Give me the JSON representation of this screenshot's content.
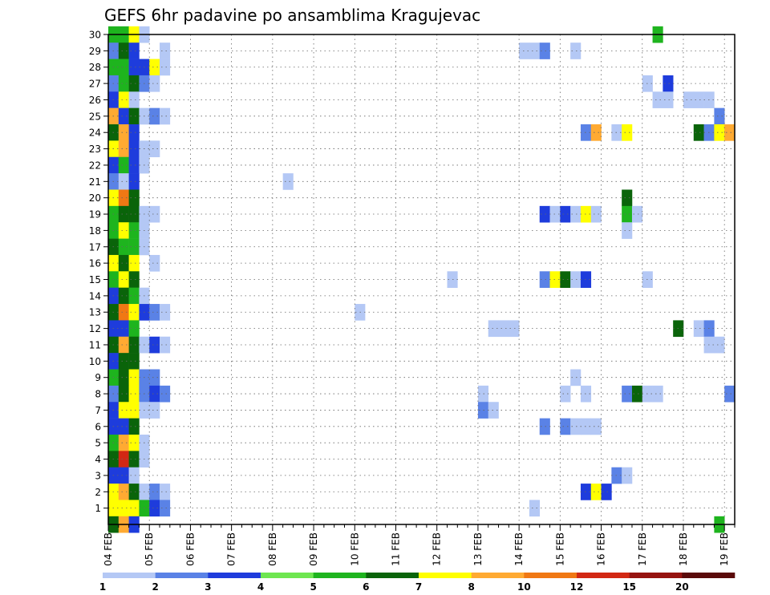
{
  "chart_data": {
    "type": "heatmap",
    "title": "GEFS 6hr padavine po ansamblima Kragujevac",
    "xlabel": "",
    "ylabel": "",
    "x_ticks": [
      "04 FEB",
      "05 FEB",
      "06 FEB",
      "07 FEB",
      "08 FEB",
      "09 FEB",
      "10 FEB",
      "11 FEB",
      "12 FEB",
      "13 FEB",
      "14 FEB",
      "15 FEB",
      "16 FEB",
      "17 FEB",
      "18 FEB",
      "19 FEB"
    ],
    "y_ticks": [
      "1",
      "2",
      "3",
      "4",
      "5",
      "6",
      "7",
      "8",
      "9",
      "10",
      "11",
      "12",
      "13",
      "14",
      "15",
      "16",
      "17",
      "18",
      "19",
      "20",
      "21",
      "22",
      "23",
      "24",
      "25",
      "26",
      "27",
      "28",
      "29",
      "30"
    ],
    "xlim": [
      0,
      61
    ],
    "ylim": [
      0,
      30
    ],
    "grid": true,
    "colorbar": {
      "labels": [
        "1",
        "2",
        "3",
        "4",
        "5",
        "6",
        "7",
        "8",
        "10",
        "12",
        "15",
        "20"
      ],
      "colors": [
        "#b4c8f5",
        "#5a82e6",
        "#1e3cdc",
        "#6ee650",
        "#1eb41e",
        "#0a640a",
        "#ffff00",
        "#ffaa32",
        "#f07814",
        "#d22814",
        "#961410",
        "#5a0a0a"
      ]
    },
    "cells": [
      {
        "m": 30,
        "t": 0,
        "v": 5
      },
      {
        "m": 30,
        "t": 1,
        "v": 5
      },
      {
        "m": 30,
        "t": 2,
        "v": 7
      },
      {
        "m": 30,
        "t": 3,
        "v": 1
      },
      {
        "m": 30,
        "t": 53,
        "v": 5
      },
      {
        "m": 29,
        "t": 0,
        "v": 2
      },
      {
        "m": 29,
        "t": 1,
        "v": 6
      },
      {
        "m": 29,
        "t": 2,
        "v": 3
      },
      {
        "m": 29,
        "t": 5,
        "v": 1
      },
      {
        "m": 29,
        "t": 40,
        "v": 1
      },
      {
        "m": 29,
        "t": 41,
        "v": 1
      },
      {
        "m": 29,
        "t": 42,
        "v": 2
      },
      {
        "m": 29,
        "t": 45,
        "v": 1
      },
      {
        "m": 28,
        "t": 0,
        "v": 5
      },
      {
        "m": 28,
        "t": 1,
        "v": 5
      },
      {
        "m": 28,
        "t": 2,
        "v": 3
      },
      {
        "m": 28,
        "t": 3,
        "v": 3
      },
      {
        "m": 28,
        "t": 4,
        "v": 7
      },
      {
        "m": 28,
        "t": 5,
        "v": 1
      },
      {
        "m": 27,
        "t": 0,
        "v": 2
      },
      {
        "m": 27,
        "t": 1,
        "v": 5
      },
      {
        "m": 27,
        "t": 2,
        "v": 6
      },
      {
        "m": 27,
        "t": 3,
        "v": 2
      },
      {
        "m": 27,
        "t": 4,
        "v": 1
      },
      {
        "m": 27,
        "t": 52,
        "v": 1
      },
      {
        "m": 27,
        "t": 54,
        "v": 3
      },
      {
        "m": 26,
        "t": 0,
        "v": 3
      },
      {
        "m": 26,
        "t": 1,
        "v": 7
      },
      {
        "m": 26,
        "t": 2,
        "v": 1
      },
      {
        "m": 26,
        "t": 53,
        "v": 1
      },
      {
        "m": 26,
        "t": 54,
        "v": 1
      },
      {
        "m": 26,
        "t": 56,
        "v": 1
      },
      {
        "m": 26,
        "t": 57,
        "v": 1
      },
      {
        "m": 26,
        "t": 58,
        "v": 1
      },
      {
        "m": 25,
        "t": 0,
        "v": 8
      },
      {
        "m": 25,
        "t": 1,
        "v": 3
      },
      {
        "m": 25,
        "t": 2,
        "v": 6
      },
      {
        "m": 25,
        "t": 3,
        "v": 1
      },
      {
        "m": 25,
        "t": 4,
        "v": 2
      },
      {
        "m": 25,
        "t": 5,
        "v": 1
      },
      {
        "m": 25,
        "t": 59,
        "v": 2
      },
      {
        "m": 24,
        "t": 0,
        "v": 6
      },
      {
        "m": 24,
        "t": 1,
        "v": 8
      },
      {
        "m": 24,
        "t": 2,
        "v": 3
      },
      {
        "m": 24,
        "t": 46,
        "v": 2
      },
      {
        "m": 24,
        "t": 47,
        "v": 8
      },
      {
        "m": 24,
        "t": 49,
        "v": 1
      },
      {
        "m": 24,
        "t": 50,
        "v": 7
      },
      {
        "m": 24,
        "t": 57,
        "v": 6
      },
      {
        "m": 24,
        "t": 58,
        "v": 2
      },
      {
        "m": 24,
        "t": 59,
        "v": 7
      },
      {
        "m": 24,
        "t": 60,
        "v": 8
      },
      {
        "m": 23,
        "t": 0,
        "v": 7
      },
      {
        "m": 23,
        "t": 1,
        "v": 8
      },
      {
        "m": 23,
        "t": 2,
        "v": 3
      },
      {
        "m": 23,
        "t": 3,
        "v": 1
      },
      {
        "m": 23,
        "t": 4,
        "v": 1
      },
      {
        "m": 22,
        "t": 0,
        "v": 3
      },
      {
        "m": 22,
        "t": 1,
        "v": 5
      },
      {
        "m": 22,
        "t": 2,
        "v": 3
      },
      {
        "m": 22,
        "t": 3,
        "v": 1
      },
      {
        "m": 21,
        "t": 0,
        "v": 2
      },
      {
        "m": 21,
        "t": 1,
        "v": 1
      },
      {
        "m": 21,
        "t": 2,
        "v": 3
      },
      {
        "m": 21,
        "t": 17,
        "v": 1
      },
      {
        "m": 20,
        "t": 0,
        "v": 7
      },
      {
        "m": 20,
        "t": 1,
        "v": 9
      },
      {
        "m": 20,
        "t": 2,
        "v": 6
      },
      {
        "m": 20,
        "t": 50,
        "v": 6
      },
      {
        "m": 19,
        "t": 0,
        "v": 5
      },
      {
        "m": 19,
        "t": 1,
        "v": 6
      },
      {
        "m": 19,
        "t": 2,
        "v": 6
      },
      {
        "m": 19,
        "t": 3,
        "v": 1
      },
      {
        "m": 19,
        "t": 4,
        "v": 1
      },
      {
        "m": 19,
        "t": 42,
        "v": 3
      },
      {
        "m": 19,
        "t": 43,
        "v": 1
      },
      {
        "m": 19,
        "t": 44,
        "v": 3
      },
      {
        "m": 19,
        "t": 45,
        "v": 1
      },
      {
        "m": 19,
        "t": 46,
        "v": 7
      },
      {
        "m": 19,
        "t": 47,
        "v": 1
      },
      {
        "m": 19,
        "t": 50,
        "v": 5
      },
      {
        "m": 19,
        "t": 51,
        "v": 1
      },
      {
        "m": 18,
        "t": 0,
        "v": 5
      },
      {
        "m": 18,
        "t": 1,
        "v": 7
      },
      {
        "m": 18,
        "t": 2,
        "v": 5
      },
      {
        "m": 18,
        "t": 3,
        "v": 1
      },
      {
        "m": 18,
        "t": 50,
        "v": 1
      },
      {
        "m": 17,
        "t": 0,
        "v": 6
      },
      {
        "m": 17,
        "t": 1,
        "v": 5
      },
      {
        "m": 17,
        "t": 2,
        "v": 5
      },
      {
        "m": 17,
        "t": 3,
        "v": 1
      },
      {
        "m": 16,
        "t": 0,
        "v": 7
      },
      {
        "m": 16,
        "t": 1,
        "v": 6
      },
      {
        "m": 16,
        "t": 2,
        "v": 7
      },
      {
        "m": 16,
        "t": 4,
        "v": 1
      },
      {
        "m": 15,
        "t": 0,
        "v": 5
      },
      {
        "m": 15,
        "t": 1,
        "v": 7
      },
      {
        "m": 15,
        "t": 2,
        "v": 6
      },
      {
        "m": 15,
        "t": 33,
        "v": 1
      },
      {
        "m": 15,
        "t": 42,
        "v": 2
      },
      {
        "m": 15,
        "t": 43,
        "v": 7
      },
      {
        "m": 15,
        "t": 44,
        "v": 6
      },
      {
        "m": 15,
        "t": 45,
        "v": 1
      },
      {
        "m": 15,
        "t": 46,
        "v": 3
      },
      {
        "m": 15,
        "t": 52,
        "v": 1
      },
      {
        "m": 14,
        "t": 0,
        "v": 3
      },
      {
        "m": 14,
        "t": 1,
        "v": 6
      },
      {
        "m": 14,
        "t": 2,
        "v": 5
      },
      {
        "m": 14,
        "t": 3,
        "v": 1
      },
      {
        "m": 13,
        "t": 0,
        "v": 6
      },
      {
        "m": 13,
        "t": 1,
        "v": 9
      },
      {
        "m": 13,
        "t": 2,
        "v": 7
      },
      {
        "m": 13,
        "t": 3,
        "v": 3
      },
      {
        "m": 13,
        "t": 4,
        "v": 2
      },
      {
        "m": 13,
        "t": 5,
        "v": 1
      },
      {
        "m": 13,
        "t": 24,
        "v": 1
      },
      {
        "m": 12,
        "t": 0,
        "v": 3
      },
      {
        "m": 12,
        "t": 1,
        "v": 3
      },
      {
        "m": 12,
        "t": 2,
        "v": 5
      },
      {
        "m": 12,
        "t": 37,
        "v": 1
      },
      {
        "m": 12,
        "t": 38,
        "v": 1
      },
      {
        "m": 12,
        "t": 39,
        "v": 1
      },
      {
        "m": 12,
        "t": 55,
        "v": 6
      },
      {
        "m": 12,
        "t": 57,
        "v": 1
      },
      {
        "m": 12,
        "t": 58,
        "v": 2
      },
      {
        "m": 11,
        "t": 0,
        "v": 6
      },
      {
        "m": 11,
        "t": 1,
        "v": 8
      },
      {
        "m": 11,
        "t": 2,
        "v": 6
      },
      {
        "m": 11,
        "t": 3,
        "v": 1
      },
      {
        "m": 11,
        "t": 4,
        "v": 3
      },
      {
        "m": 11,
        "t": 5,
        "v": 1
      },
      {
        "m": 11,
        "t": 58,
        "v": 1
      },
      {
        "m": 11,
        "t": 59,
        "v": 1
      },
      {
        "m": 10,
        "t": 0,
        "v": 3
      },
      {
        "m": 10,
        "t": 1,
        "v": 6
      },
      {
        "m": 10,
        "t": 2,
        "v": 6
      },
      {
        "m": 9,
        "t": 0,
        "v": 5
      },
      {
        "m": 9,
        "t": 1,
        "v": 6
      },
      {
        "m": 9,
        "t": 2,
        "v": 7
      },
      {
        "m": 9,
        "t": 3,
        "v": 2
      },
      {
        "m": 9,
        "t": 4,
        "v": 2
      },
      {
        "m": 9,
        "t": 45,
        "v": 1
      },
      {
        "m": 8,
        "t": 0,
        "v": 2
      },
      {
        "m": 8,
        "t": 1,
        "v": 6
      },
      {
        "m": 8,
        "t": 2,
        "v": 7
      },
      {
        "m": 8,
        "t": 3,
        "v": 2
      },
      {
        "m": 8,
        "t": 4,
        "v": 3
      },
      {
        "m": 8,
        "t": 5,
        "v": 2
      },
      {
        "m": 8,
        "t": 36,
        "v": 1
      },
      {
        "m": 8,
        "t": 44,
        "v": 1
      },
      {
        "m": 8,
        "t": 46,
        "v": 1
      },
      {
        "m": 8,
        "t": 50,
        "v": 2
      },
      {
        "m": 8,
        "t": 51,
        "v": 6
      },
      {
        "m": 8,
        "t": 52,
        "v": 1
      },
      {
        "m": 8,
        "t": 53,
        "v": 1
      },
      {
        "m": 8,
        "t": 60,
        "v": 2
      },
      {
        "m": 7,
        "t": 0,
        "v": 3
      },
      {
        "m": 7,
        "t": 1,
        "v": 7
      },
      {
        "m": 7,
        "t": 2,
        "v": 7
      },
      {
        "m": 7,
        "t": 3,
        "v": 1
      },
      {
        "m": 7,
        "t": 4,
        "v": 1
      },
      {
        "m": 7,
        "t": 36,
        "v": 2
      },
      {
        "m": 7,
        "t": 37,
        "v": 1
      },
      {
        "m": 6,
        "t": 0,
        "v": 3
      },
      {
        "m": 6,
        "t": 1,
        "v": 3
      },
      {
        "m": 6,
        "t": 2,
        "v": 6
      },
      {
        "m": 6,
        "t": 42,
        "v": 2
      },
      {
        "m": 6,
        "t": 44,
        "v": 2
      },
      {
        "m": 6,
        "t": 45,
        "v": 1
      },
      {
        "m": 6,
        "t": 46,
        "v": 1
      },
      {
        "m": 6,
        "t": 47,
        "v": 1
      },
      {
        "m": 5,
        "t": 0,
        "v": 5
      },
      {
        "m": 5,
        "t": 1,
        "v": 8
      },
      {
        "m": 5,
        "t": 2,
        "v": 7
      },
      {
        "m": 5,
        "t": 3,
        "v": 1
      },
      {
        "m": 4,
        "t": 0,
        "v": 6
      },
      {
        "m": 4,
        "t": 1,
        "v": 10
      },
      {
        "m": 4,
        "t": 2,
        "v": 6
      },
      {
        "m": 4,
        "t": 3,
        "v": 1
      },
      {
        "m": 3,
        "t": 0,
        "v": 3
      },
      {
        "m": 3,
        "t": 1,
        "v": 3
      },
      {
        "m": 3,
        "t": 2,
        "v": 1
      },
      {
        "m": 3,
        "t": 49,
        "v": 2
      },
      {
        "m": 3,
        "t": 50,
        "v": 1
      },
      {
        "m": 2,
        "t": 0,
        "v": 7
      },
      {
        "m": 2,
        "t": 1,
        "v": 8
      },
      {
        "m": 2,
        "t": 2,
        "v": 6
      },
      {
        "m": 2,
        "t": 3,
        "v": 1
      },
      {
        "m": 2,
        "t": 4,
        "v": 2
      },
      {
        "m": 2,
        "t": 5,
        "v": 1
      },
      {
        "m": 2,
        "t": 46,
        "v": 3
      },
      {
        "m": 2,
        "t": 47,
        "v": 7
      },
      {
        "m": 2,
        "t": 48,
        "v": 3
      },
      {
        "m": 1,
        "t": 0,
        "v": 7
      },
      {
        "m": 1,
        "t": 1,
        "v": 7
      },
      {
        "m": 1,
        "t": 2,
        "v": 7
      },
      {
        "m": 1,
        "t": 3,
        "v": 5
      },
      {
        "m": 1,
        "t": 4,
        "v": 3
      },
      {
        "m": 1,
        "t": 5,
        "v": 2
      },
      {
        "m": 1,
        "t": 41,
        "v": 1
      },
      {
        "m": 0,
        "t": 0,
        "v": 6
      },
      {
        "m": 0,
        "t": 1,
        "v": 8
      },
      {
        "m": 0,
        "t": 2,
        "v": 3
      },
      {
        "m": 0,
        "t": 59,
        "v": 5
      }
    ]
  }
}
